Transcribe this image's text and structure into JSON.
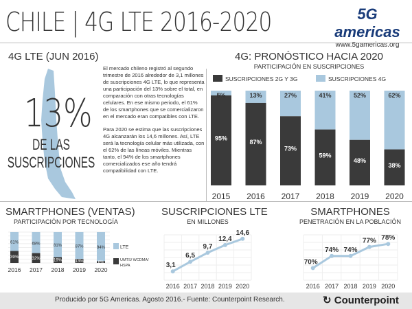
{
  "header": {
    "title": "CHILE | 4G LTE 2016-2020",
    "logo_text": "5G americas",
    "logo_url": "www.5gamericas.org"
  },
  "left": {
    "heading": "4G LTE (JUN 2016)",
    "big_pct": "13%",
    "big_desc": "DE LAS SUSCRIPCIONES",
    "paragraphs": [
      "El mercado chileno registró al segundo trimestre de 2016 alrededor de 3,1 millones de suscripciones 4G LTE, lo que representa una participación del 13% sobre el total, en comparación con otras tecnologías celulares. En ese mismo periodo, el 61% de los smartphones que se comercializaron en el mercado eran compatibles con LTE.",
      "Para 2020 se estima que las suscripciones 4G alcanzarán los 14,6 millones. Así, LTE será la tecnología celular más utilizada, con el 62% de las líneas móviles. Mientras tanto, el 94% de los smartphones comercializados ese año tendrá compatibilidad con LTE."
    ]
  },
  "colors": {
    "dark": "#3a3a3a",
    "light": "#a9c8de"
  },
  "footer": {
    "text": "Producido por 5G Americas. Agosto 2016.- Fuente: Counterpoint Research.",
    "brand": "Counterpoint"
  },
  "chart_data": [
    {
      "type": "bar",
      "stacked": true,
      "title": "4G: PRONÓSTICO HACIA 2020",
      "subtitle": "PARTICIPACIÓN EN SUSCRIPCIONES",
      "categories": [
        "2015",
        "2016",
        "2017",
        "2018",
        "2019",
        "2020"
      ],
      "series": [
        {
          "name": "SUSCRIPCIONES 2G Y 3G",
          "values": [
            95,
            87,
            73,
            59,
            48,
            38
          ],
          "color": "#3a3a3a"
        },
        {
          "name": "SUSCRIPCIONES 4G",
          "values": [
            5,
            13,
            27,
            41,
            52,
            62
          ],
          "color": "#a9c8de"
        }
      ],
      "legend": "top"
    },
    {
      "type": "bar",
      "stacked": true,
      "title": "SMARTPHONES (VENTAS)",
      "subtitle": "PARTICIPACIÓN POR TECNOLOGÍA",
      "categories": [
        "2016",
        "2017",
        "2018",
        "2019",
        "2020"
      ],
      "series": [
        {
          "name": "UMTS/ WCDMA/ HSPA",
          "values": [
            39,
            32,
            19,
            13,
            6
          ],
          "color": "#3a3a3a"
        },
        {
          "name": "LTE",
          "values": [
            61,
            68,
            81,
            87,
            94
          ],
          "color": "#a9c8de"
        }
      ],
      "legend": "right",
      "grid": true
    },
    {
      "type": "line",
      "title": "SUSCRIPCIONES LTE",
      "subtitle": "EN MILLONES",
      "categories": [
        "2016",
        "2017",
        "2018",
        "2019",
        "2020"
      ],
      "values": [
        3.1,
        6.5,
        9.7,
        12.4,
        14.6
      ],
      "labels": [
        "3,1",
        "6,5",
        "9,7",
        "12,4",
        "14,6"
      ],
      "ylim": [
        0,
        16
      ],
      "grid": true
    },
    {
      "type": "line",
      "title": "SMARTPHONES",
      "subtitle": "PENETRACIÓN EN LA POBLACIÓN",
      "categories": [
        "2016",
        "2017",
        "2018",
        "2019",
        "2020"
      ],
      "values": [
        70,
        74,
        74,
        77,
        78
      ],
      "labels": [
        "70%",
        "74%",
        "74%",
        "77%",
        "78%"
      ],
      "ylim": [
        66,
        81
      ],
      "grid": true
    }
  ]
}
